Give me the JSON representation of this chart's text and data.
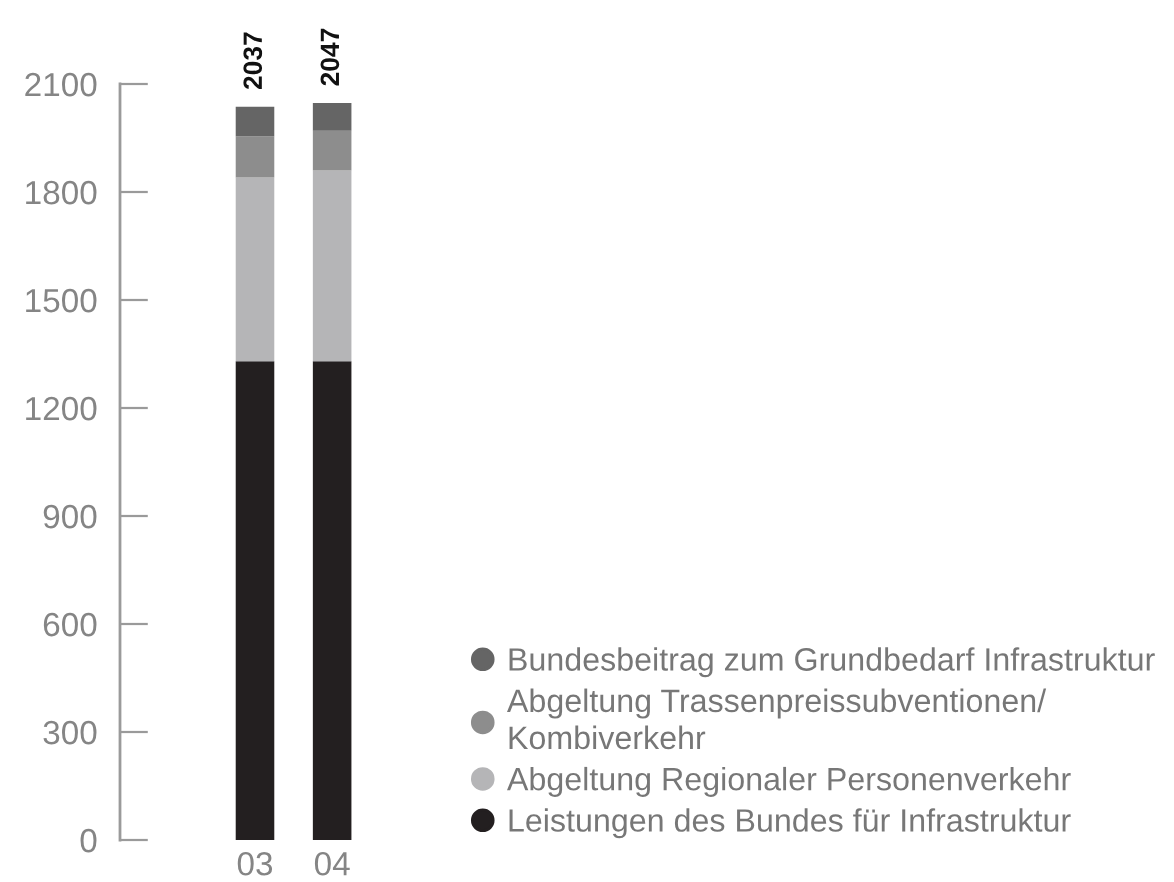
{
  "chart_data": {
    "type": "bar",
    "stacked": true,
    "categories": [
      "03",
      "04"
    ],
    "series": [
      {
        "name": "Leistungen des Bundes für Infrastruktur",
        "color": "#231f20",
        "values": [
          1330,
          1330
        ]
      },
      {
        "name": "Abgeltung Regionaler Personenverkehr",
        "color": "#b5b5b7",
        "values": [
          510,
          530
        ]
      },
      {
        "name": "Abgeltung Trassenpreissubventionen/\nKombiverkehr",
        "color": "#8d8d8d",
        "values": [
          115,
          110
        ]
      },
      {
        "name": "Bundesbeitrag zum Grundbedarf Infrastruktur",
        "color": "#656565",
        "values": [
          82,
          77
        ]
      }
    ],
    "totals": [
      "2037",
      "2047"
    ],
    "ylim": [
      0,
      2100
    ],
    "yticks": [
      0,
      300,
      600,
      900,
      1200,
      1500,
      1800,
      2100
    ],
    "legend": "bottom right"
  }
}
